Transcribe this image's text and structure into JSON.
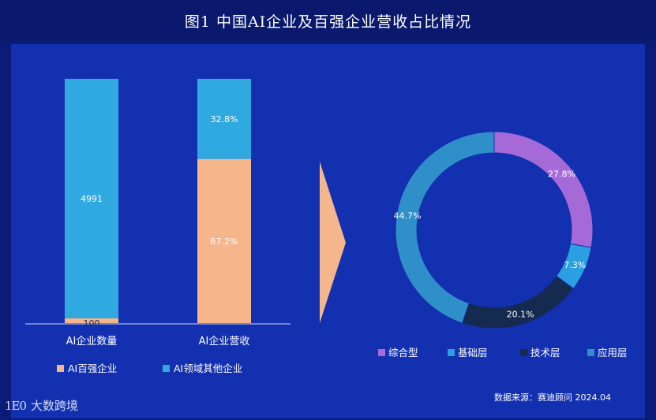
{
  "title": "图1  中国AI企业及百强企业营收占比情况",
  "source": "数据来源：赛迪顾问   2024.04",
  "watermark_text": "大数跨境",
  "watermark_logo": "1E0",
  "colors": {
    "top100": "#f4b68a",
    "other": "#30a8e0",
    "donut": [
      "#a66ad8",
      "#2aa0e2",
      "#152a4f",
      "#2f8fc8"
    ],
    "arrow": "#f4b68a"
  },
  "chart_data": [
    {
      "type": "bar",
      "stacked": true,
      "categories": [
        "AI企业数量",
        "AI企业营收"
      ],
      "series": [
        {
          "name": "AI百强企业",
          "values": [
            100,
            67.2
          ],
          "labels": [
            "100",
            "67.2%"
          ]
        },
        {
          "name": "AI领域其他企业",
          "values": [
            4991,
            32.8
          ],
          "labels": [
            "4991",
            "32.8%"
          ]
        }
      ],
      "legend_position": "bottom",
      "grid": false
    },
    {
      "type": "pie",
      "donut": true,
      "categories": [
        "综合型",
        "基础层",
        "技术层",
        "应用层"
      ],
      "values": [
        27.8,
        7.3,
        20.1,
        44.7
      ],
      "labels": [
        "27.8%",
        "7.3%",
        "20.1%",
        "44.7%"
      ],
      "legend_position": "bottom"
    }
  ]
}
